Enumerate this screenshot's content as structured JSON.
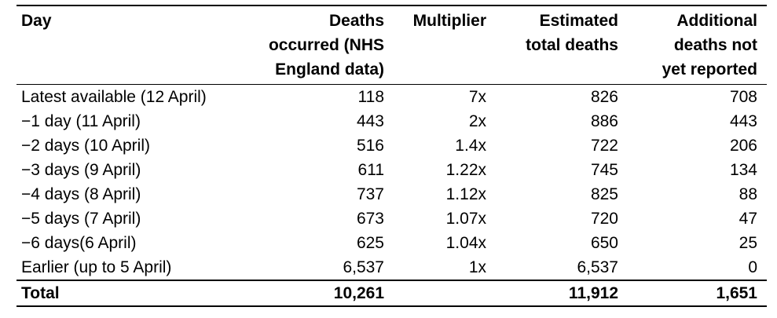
{
  "table": {
    "headers": {
      "day": [
        "Day"
      ],
      "deaths": [
        "Deaths",
        "occurred (NHS",
        "England data)"
      ],
      "multiplier": [
        "Multiplier"
      ],
      "estimated": [
        "Estimated",
        "total deaths"
      ],
      "additional": [
        "Additional",
        "deaths not",
        "yet reported"
      ]
    },
    "rows": [
      {
        "day": "Latest available (12 April)",
        "deaths": "118",
        "multiplier": "7x",
        "estimated": "826",
        "additional": "708"
      },
      {
        "day": "−1 day (11 April)",
        "deaths": "443",
        "multiplier": "2x",
        "estimated": "886",
        "additional": "443"
      },
      {
        "day": "−2 days (10 April)",
        "deaths": "516",
        "multiplier": "1.4x",
        "estimated": "722",
        "additional": "206"
      },
      {
        "day": "−3 days (9 April)",
        "deaths": "611",
        "multiplier": "1.22x",
        "estimated": "745",
        "additional": "134"
      },
      {
        "day": "−4 days (8 April)",
        "deaths": "737",
        "multiplier": "1.12x",
        "estimated": "825",
        "additional": "88"
      },
      {
        "day": "−5 days (7 April)",
        "deaths": "673",
        "multiplier": "1.07x",
        "estimated": "720",
        "additional": "47"
      },
      {
        "day": "−6 days(6 April)",
        "deaths": "625",
        "multiplier": "1.04x",
        "estimated": "650",
        "additional": "25"
      },
      {
        "day": "Earlier (up to 5 April)",
        "deaths": "6,537",
        "multiplier": "1x",
        "estimated": "6,537",
        "additional": "0"
      }
    ],
    "total": {
      "day": "Total",
      "deaths": "10,261",
      "multiplier": "",
      "estimated": "11,912",
      "additional": "1,651"
    }
  }
}
